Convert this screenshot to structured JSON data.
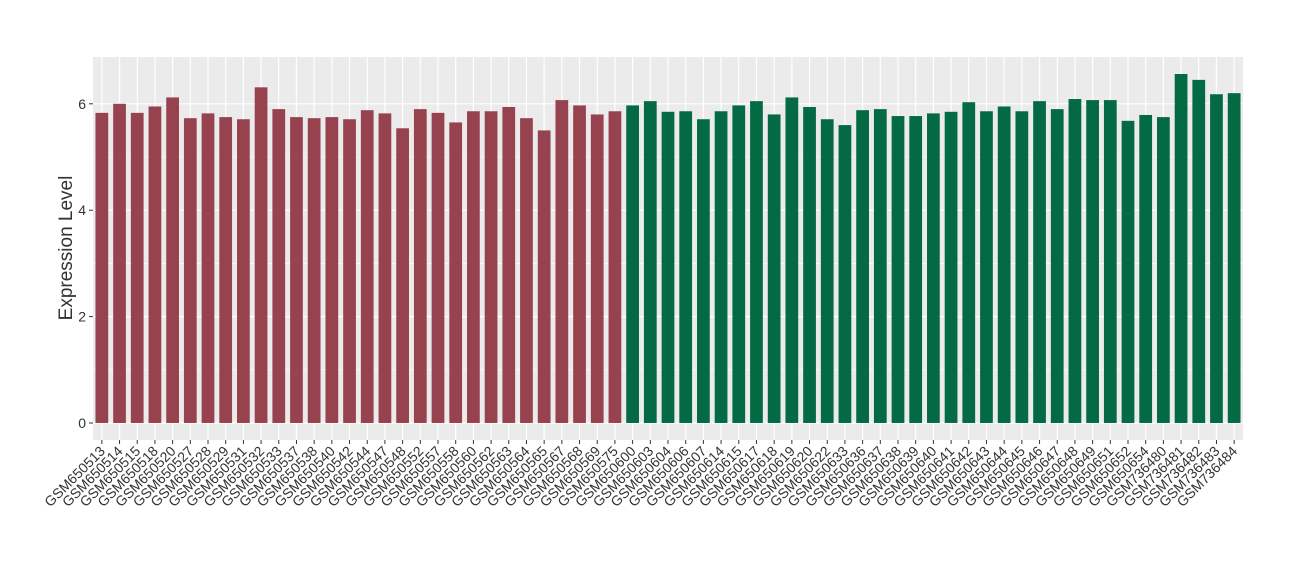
{
  "chart_data": {
    "type": "bar",
    "y_label": "Expression Level",
    "categories": [
      "GSM650513",
      "GSM650514",
      "GSM650515",
      "GSM650518",
      "GSM650520",
      "GSM650527",
      "GSM650528",
      "GSM650529",
      "GSM650531",
      "GSM650532",
      "GSM650533",
      "GSM650537",
      "GSM650538",
      "GSM650540",
      "GSM650542",
      "GSM650544",
      "GSM650547",
      "GSM650548",
      "GSM650552",
      "GSM650557",
      "GSM650558",
      "GSM650560",
      "GSM650562",
      "GSM650563",
      "GSM650564",
      "GSM650565",
      "GSM650567",
      "GSM650568",
      "GSM650569",
      "GSM650575",
      "GSM650600",
      "GSM650603",
      "GSM650604",
      "GSM650606",
      "GSM650607",
      "GSM650614",
      "GSM650615",
      "GSM650617",
      "GSM650618",
      "GSM650619",
      "GSM650620",
      "GSM650622",
      "GSM650633",
      "GSM650636",
      "GSM650637",
      "GSM650638",
      "GSM650639",
      "GSM650640",
      "GSM650641",
      "GSM650642",
      "GSM650643",
      "GSM650644",
      "GSM650645",
      "GSM650646",
      "GSM650647",
      "GSM650648",
      "GSM650649",
      "GSM650651",
      "GSM650652",
      "GSM650654",
      "GSM736480",
      "GSM736481",
      "GSM736482",
      "GSM736483",
      "GSM736484"
    ],
    "values": [
      5.83,
      6.0,
      5.83,
      5.95,
      6.12,
      5.73,
      5.82,
      5.75,
      5.71,
      6.31,
      5.9,
      5.75,
      5.73,
      5.75,
      5.71,
      5.88,
      5.82,
      5.54,
      5.9,
      5.83,
      5.65,
      5.86,
      5.86,
      5.94,
      5.73,
      5.5,
      6.07,
      5.97,
      5.8,
      5.86,
      5.97,
      6.05,
      5.85,
      5.86,
      5.71,
      5.86,
      5.97,
      6.05,
      5.8,
      6.12,
      5.94,
      5.71,
      5.6,
      5.88,
      5.9,
      5.77,
      5.77,
      5.82,
      5.85,
      6.03,
      5.86,
      5.95,
      5.86,
      6.05,
      5.9,
      6.09,
      6.07,
      6.07,
      5.68,
      5.79,
      5.75,
      6.56,
      6.45,
      6.18,
      6.2
    ],
    "colors": [
      "#97434f",
      "#97434f",
      "#97434f",
      "#97434f",
      "#97434f",
      "#97434f",
      "#97434f",
      "#97434f",
      "#97434f",
      "#97434f",
      "#97434f",
      "#97434f",
      "#97434f",
      "#97434f",
      "#97434f",
      "#97434f",
      "#97434f",
      "#97434f",
      "#97434f",
      "#97434f",
      "#97434f",
      "#97434f",
      "#97434f",
      "#97434f",
      "#97434f",
      "#97434f",
      "#97434f",
      "#97434f",
      "#97434f",
      "#97434f",
      "#036a44",
      "#036a44",
      "#036a44",
      "#036a44",
      "#036a44",
      "#036a44",
      "#036a44",
      "#036a44",
      "#036a44",
      "#036a44",
      "#036a44",
      "#036a44",
      "#036a44",
      "#036a44",
      "#036a44",
      "#036a44",
      "#036a44",
      "#036a44",
      "#036a44",
      "#036a44",
      "#036a44",
      "#036a44",
      "#036a44",
      "#036a44",
      "#036a44",
      "#036a44",
      "#036a44",
      "#036a44",
      "#036a44",
      "#036a44",
      "#036a44",
      "#036a44",
      "#036a44",
      "#036a44",
      "#036a44"
    ],
    "ylim": [
      -0.32,
      6.88
    ],
    "yticks": [
      0,
      2,
      4,
      6
    ],
    "y_minor_ticks": [
      1,
      3,
      5
    ],
    "grid": true
  }
}
